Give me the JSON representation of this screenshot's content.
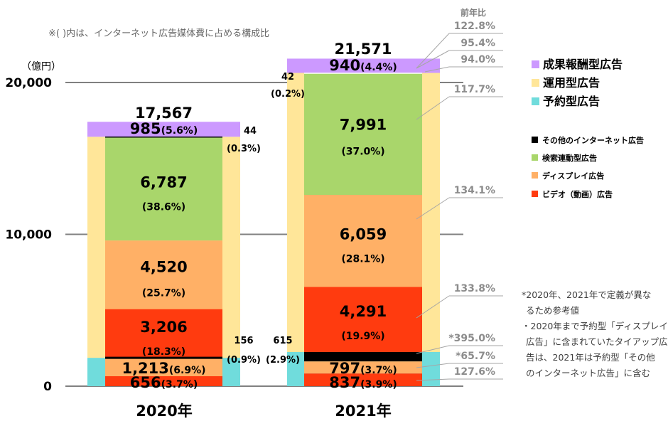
{
  "chart_data": {
    "type": "bar",
    "note": "※( )内は、インターネット広告媒体費に占める構成比",
    "unit_label": "（億円）",
    "yoy_header": "前年比",
    "categories": [
      "2020年",
      "2021年"
    ],
    "y_ticks": [
      "0",
      "10,000",
      "20,000"
    ],
    "ylim": [
      0,
      20000
    ],
    "totals": [
      "17,567",
      "21,571"
    ],
    "outer_series": [
      {
        "name": "成果報酬型広告",
        "color": "#cc99ff",
        "values": [
          985,
          940
        ],
        "labels": [
          "985",
          "940"
        ],
        "pcts": [
          "(5.6%)",
          "(4.4%)"
        ]
      },
      {
        "name": "運用型広告",
        "color": "#ffe699",
        "values": [
          14226,
          18330
        ]
      },
      {
        "name": "予約型広告",
        "color": "#70dcdc",
        "values": [
          2356,
          2301
        ]
      }
    ],
    "inner_series": [
      {
        "name": "その他のインターネット広告",
        "color": "#000000",
        "values": [
          156,
          615
        ],
        "labels": [
          "156",
          "615"
        ],
        "pcts": [
          "(0.9%)",
          "(2.9%)"
        ]
      },
      {
        "name": "検索連動型広告",
        "color": "#a9d66b",
        "values": [
          6787,
          7991
        ],
        "labels": [
          "6,787",
          "7,991"
        ],
        "pcts": [
          "(38.6%)",
          "(37.0%)"
        ]
      },
      {
        "name": "ディスプレイ広告",
        "color": "#ffb066",
        "values": [
          4520,
          6059
        ],
        "labels": [
          "4,520",
          "6,059"
        ],
        "pcts": [
          "(25.7%)",
          "(28.1%)"
        ]
      },
      {
        "name": "ビデオ（動画）広告",
        "color": "#ff3b0f",
        "values": [
          3206,
          4291
        ],
        "labels": [
          "3,206",
          "4,291"
        ],
        "pcts": [
          "(18.3%)",
          "(19.9%)"
        ]
      }
    ],
    "segments": {
      "y2020": [
        {
          "name": "予約型 ビデオ",
          "value": 656,
          "label": "656",
          "pct": "(3.7%)"
        },
        {
          "name": "予約型 ディスプレイ",
          "value": 1213,
          "label": "1,213",
          "pct": "(6.9%)"
        },
        {
          "name": "運用型 ビデオ",
          "value": 3206
        },
        {
          "name": "運用型 ディスプレイ",
          "value": 4520
        },
        {
          "name": "運用型 検索連動型",
          "value": 6787
        },
        {
          "name": "運用型 その他",
          "value": 44,
          "label": "44",
          "pct": "(0.3%)"
        },
        {
          "name": "成果報酬型",
          "value": 985
        }
      ],
      "y2021": [
        {
          "name": "予約型 ビデオ",
          "value": 837,
          "label": "837",
          "pct": "(3.9%)"
        },
        {
          "name": "予約型 ディスプレイ",
          "value": 797,
          "label": "797",
          "pct": "(3.7%)"
        },
        {
          "name": "予約型 その他",
          "value": 615
        },
        {
          "name": "運用型 ビデオ",
          "value": 4291
        },
        {
          "name": "運用型 ディスプレイ",
          "value": 6059
        },
        {
          "name": "運用型 検索連動型",
          "value": 7991
        },
        {
          "name": "運用型 その他",
          "value": 42,
          "label": "42",
          "pct": "(0.2%)"
        },
        {
          "name": "成果報酬型",
          "value": 940
        }
      ]
    },
    "yoy": [
      {
        "label": "122.8%",
        "target": "総額"
      },
      {
        "label": "95.4%",
        "target": "成果報酬型広告"
      },
      {
        "label": "94.0%",
        "target": "運用型 その他"
      },
      {
        "label": "117.7%",
        "target": "検索連動型広告"
      },
      {
        "label": "134.1%",
        "target": "ディスプレイ広告"
      },
      {
        "label": "133.8%",
        "target": "ビデオ（動画）広告"
      },
      {
        "label": "*395.0%",
        "target": "その他のインターネット広告"
      },
      {
        "label": "*65.7%",
        "target": "予約型 ディスプレイ"
      },
      {
        "label": "127.6%",
        "target": "予約型 ビデオ"
      }
    ],
    "footnote_lines": [
      "*2020年、2021年で定義が異な",
      "るため参考値",
      "・2020年まで予約型「ディスプレイ",
      "広告」に含まれていたタイアップ広",
      "告は、2021年は予約型「その他",
      "のインターネット広告」に含む"
    ],
    "gridlines": true,
    "legend_position": "right"
  }
}
